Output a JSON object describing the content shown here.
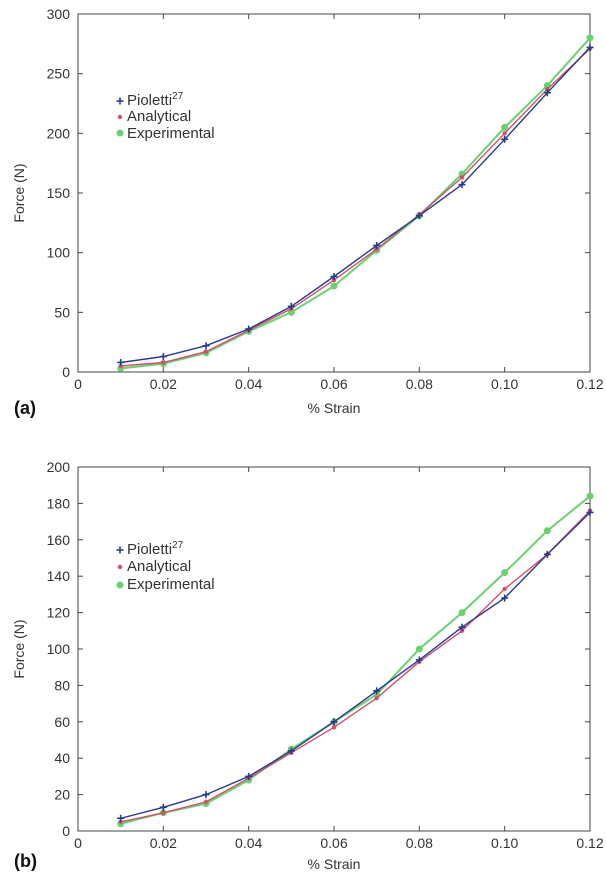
{
  "chart_data": [
    {
      "type": "line",
      "panel_label": "(a)",
      "xlabel": "% Strain",
      "ylabel": "Force (N)",
      "xlim": [
        0,
        0.12
      ],
      "ylim": [
        0,
        300
      ],
      "xticks": [
        0,
        0.02,
        0.04,
        0.06,
        0.08,
        0.1,
        0.12
      ],
      "xtick_labels": [
        "0",
        "0.02",
        "0.04",
        "0.06",
        "0.08",
        "0.10",
        "0.12"
      ],
      "yticks": [
        0,
        50,
        100,
        150,
        200,
        250,
        300
      ],
      "ytick_labels": [
        "0",
        "50",
        "100",
        "150",
        "200",
        "250",
        "300"
      ],
      "grid": false,
      "legend_position": "upper-left",
      "x": [
        0.01,
        0.02,
        0.03,
        0.04,
        0.05,
        0.06,
        0.07,
        0.08,
        0.09,
        0.1,
        0.11,
        0.12
      ],
      "series": [
        {
          "name": "Pioletti",
          "name_sup": "27",
          "color": "#2a3a8c",
          "marker": "plus",
          "values": [
            8,
            13,
            22,
            36,
            55,
            80,
            106,
            131,
            157,
            195,
            234,
            272
          ]
        },
        {
          "name": "Analytical",
          "color": "#d0506a",
          "marker": "dot",
          "values": [
            5,
            8,
            17,
            35,
            53,
            77,
            103,
            132,
            163,
            200,
            237,
            271
          ]
        },
        {
          "name": "Experimental",
          "color": "#6cd070",
          "marker": "circle",
          "values": [
            3,
            7,
            16,
            34,
            50,
            72,
            102,
            131,
            166,
            205,
            240,
            280
          ]
        }
      ]
    },
    {
      "type": "line",
      "panel_label": "(b)",
      "xlabel": "% Strain",
      "ylabel": "Force (N)",
      "xlim": [
        0,
        0.12
      ],
      "ylim": [
        0,
        200
      ],
      "xticks": [
        0,
        0.02,
        0.04,
        0.06,
        0.08,
        0.1,
        0.12
      ],
      "xtick_labels": [
        "0",
        "0.02",
        "0.04",
        "0.06",
        "0.08",
        "0.10",
        "0.12"
      ],
      "yticks": [
        0,
        20,
        40,
        60,
        80,
        100,
        120,
        140,
        160,
        180,
        200
      ],
      "ytick_labels": [
        "0",
        "20",
        "40",
        "60",
        "80",
        "100",
        "120",
        "140",
        "160",
        "180",
        "200"
      ],
      "grid": false,
      "legend_position": "upper-left",
      "x": [
        0.01,
        0.02,
        0.03,
        0.04,
        0.05,
        0.06,
        0.07,
        0.08,
        0.09,
        0.1,
        0.11,
        0.12
      ],
      "series": [
        {
          "name": "Pioletti",
          "name_sup": "27",
          "color": "#2a3a8c",
          "marker": "plus",
          "values": [
            7,
            13,
            20,
            30,
            44,
            60,
            77,
            94,
            112,
            128,
            152,
            175
          ]
        },
        {
          "name": "Analytical",
          "color": "#d0506a",
          "marker": "dot",
          "values": [
            5,
            10,
            16,
            29,
            43,
            57,
            73,
            93,
            110,
            133,
            152,
            176
          ]
        },
        {
          "name": "Experimental",
          "color": "#6cd070",
          "marker": "circle",
          "values": [
            4,
            10,
            15,
            28,
            45,
            60,
            75,
            100,
            120,
            142,
            165,
            184
          ]
        }
      ]
    }
  ]
}
